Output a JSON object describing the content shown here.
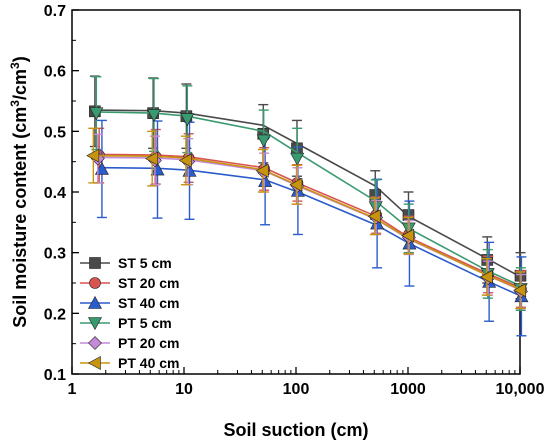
{
  "chart_data": {
    "type": "line",
    "title": "",
    "xlabel": "Soil suction (cm)",
    "ylabel_main": "Soil moisture content (cm",
    "ylabel_sup1": "3",
    "ylabel_mid": "/cm",
    "ylabel_sup2": "3",
    "ylabel_end": ")",
    "xscale": "log",
    "xlim": [
      1,
      10000
    ],
    "ylim": [
      0.1,
      0.7
    ],
    "xticks": [
      {
        "value": 1,
        "label": "1"
      },
      {
        "value": 10,
        "label": "10"
      },
      {
        "value": 100,
        "label": "100"
      },
      {
        "value": 1000,
        "label": "1000"
      },
      {
        "value": 10000,
        "label": "10,000"
      }
    ],
    "yticks": [
      {
        "value": 0.1,
        "label": "0.1"
      },
      {
        "value": 0.2,
        "label": "0.2"
      },
      {
        "value": 0.3,
        "label": "0.3"
      },
      {
        "value": 0.4,
        "label": "0.4"
      },
      {
        "value": 0.5,
        "label": "0.5"
      },
      {
        "value": 0.6,
        "label": "0.6"
      },
      {
        "value": 0.7,
        "label": "0.7"
      }
    ],
    "grid": false,
    "legend_position": "bottom-left",
    "series": [
      {
        "name": "ST 5 cm",
        "color": "#4a4a4a",
        "marker": "square",
        "x": [
          1.6,
          5.3,
          10.5,
          51,
          102,
          510,
          1010,
          5100,
          10100
        ],
        "y": [
          0.533,
          0.53,
          0.525,
          0.496,
          0.472,
          0.395,
          0.362,
          0.288,
          0.262
        ],
        "err": [
          0.058,
          0.058,
          0.053,
          0.048,
          0.046,
          0.04,
          0.038,
          0.038,
          0.038
        ],
        "fit": [
          0.535,
          0.534,
          0.53,
          0.51,
          0.48,
          0.41,
          0.36,
          0.29,
          0.26
        ]
      },
      {
        "name": "ST 20 cm",
        "color": "#d9534f",
        "marker": "circle",
        "x": [
          1.75,
          5.6,
          11,
          52,
          103,
          520,
          1020,
          5200,
          10200
        ],
        "y": [
          0.46,
          0.458,
          0.456,
          0.438,
          0.415,
          0.362,
          0.33,
          0.264,
          0.24
        ],
        "err": [
          0.045,
          0.045,
          0.04,
          0.035,
          0.03,
          0.03,
          0.03,
          0.03,
          0.03
        ],
        "fit": [
          0.462,
          0.461,
          0.458,
          0.44,
          0.415,
          0.36,
          0.325,
          0.265,
          0.242
        ]
      },
      {
        "name": "ST 40 cm",
        "color": "#2b5ccb",
        "marker": "triangle-up",
        "x": [
          1.85,
          5.8,
          11.2,
          53,
          104,
          530,
          1030,
          5300,
          10300
        ],
        "y": [
          0.438,
          0.437,
          0.435,
          0.418,
          0.402,
          0.348,
          0.315,
          0.252,
          0.228
        ],
        "err": [
          0.08,
          0.08,
          0.08,
          0.072,
          0.072,
          0.073,
          0.07,
          0.065,
          0.065
        ],
        "fit": [
          0.44,
          0.439,
          0.436,
          0.42,
          0.4,
          0.345,
          0.315,
          0.252,
          0.228
        ]
      },
      {
        "name": "PT 5 cm",
        "color": "#3a9a6f",
        "marker": "triangle-down",
        "x": [
          1.65,
          5.4,
          10.7,
          51.5,
          102.5,
          515,
          1015,
          5150,
          10150
        ],
        "y": [
          0.53,
          0.527,
          0.52,
          0.485,
          0.455,
          0.375,
          0.34,
          0.265,
          0.24
        ],
        "err": [
          0.06,
          0.06,
          0.055,
          0.05,
          0.05,
          0.045,
          0.04,
          0.04,
          0.035
        ],
        "fit": [
          0.532,
          0.53,
          0.525,
          0.5,
          0.465,
          0.385,
          0.34,
          0.27,
          0.245
        ]
      },
      {
        "name": "PT 20 cm",
        "color": "#c48ad8",
        "marker": "diamond",
        "x": [
          1.7,
          5.5,
          10.9,
          52,
          103,
          520,
          1020,
          5200,
          10200
        ],
        "y": [
          0.455,
          0.452,
          0.45,
          0.432,
          0.41,
          0.358,
          0.325,
          0.258,
          0.236
        ],
        "err": [
          0.04,
          0.04,
          0.038,
          0.032,
          0.03,
          0.028,
          0.028,
          0.028,
          0.028
        ],
        "fit": [
          0.457,
          0.456,
          0.453,
          0.435,
          0.41,
          0.355,
          0.322,
          0.262,
          0.238
        ]
      },
      {
        "name": "PT 40 cm",
        "color": "#c8940f",
        "marker": "triangle-left",
        "x": [
          1.55,
          5.2,
          10.4,
          50.5,
          101,
          505,
          1005,
          5050,
          10050
        ],
        "y": [
          0.46,
          0.455,
          0.452,
          0.435,
          0.412,
          0.36,
          0.328,
          0.26,
          0.238
        ],
        "err": [
          0.045,
          0.045,
          0.04,
          0.035,
          0.032,
          0.03,
          0.03,
          0.03,
          0.03
        ],
        "fit": [
          0.46,
          0.459,
          0.456,
          0.437,
          0.412,
          0.357,
          0.324,
          0.263,
          0.24
        ]
      }
    ]
  }
}
